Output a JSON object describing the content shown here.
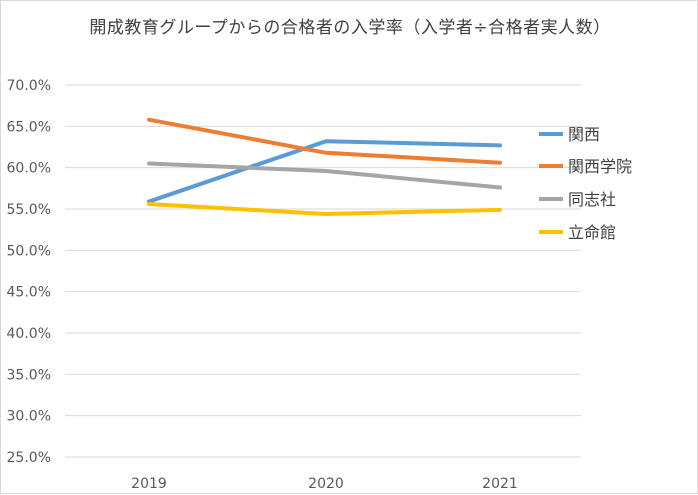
{
  "chart_data": {
    "type": "line",
    "title": "開成教育グループからの合格者の入学率（入学者÷合格者実人数）",
    "xlabel": "",
    "ylabel": "",
    "categories": [
      "2019",
      "2020",
      "2021"
    ],
    "ylim": [
      25.0,
      70.0
    ],
    "ytick_step": 5.0,
    "ytick_labels": [
      "25.0%",
      "30.0%",
      "35.0%",
      "40.0%",
      "45.0%",
      "50.0%",
      "55.0%",
      "60.0%",
      "65.0%",
      "70.0%"
    ],
    "grid": true,
    "legend_position": "right",
    "series": [
      {
        "name": "関西",
        "color": "#5b9bd5",
        "values": [
          55.9,
          63.2,
          62.7
        ]
      },
      {
        "name": "関西学院",
        "color": "#ed7d31",
        "values": [
          65.8,
          61.8,
          60.6
        ]
      },
      {
        "name": "同志社",
        "color": "#a5a5a5",
        "values": [
          60.5,
          59.6,
          57.6
        ]
      },
      {
        "name": "立命館",
        "color": "#ffc000",
        "values": [
          55.6,
          54.4,
          54.9
        ]
      }
    ]
  }
}
